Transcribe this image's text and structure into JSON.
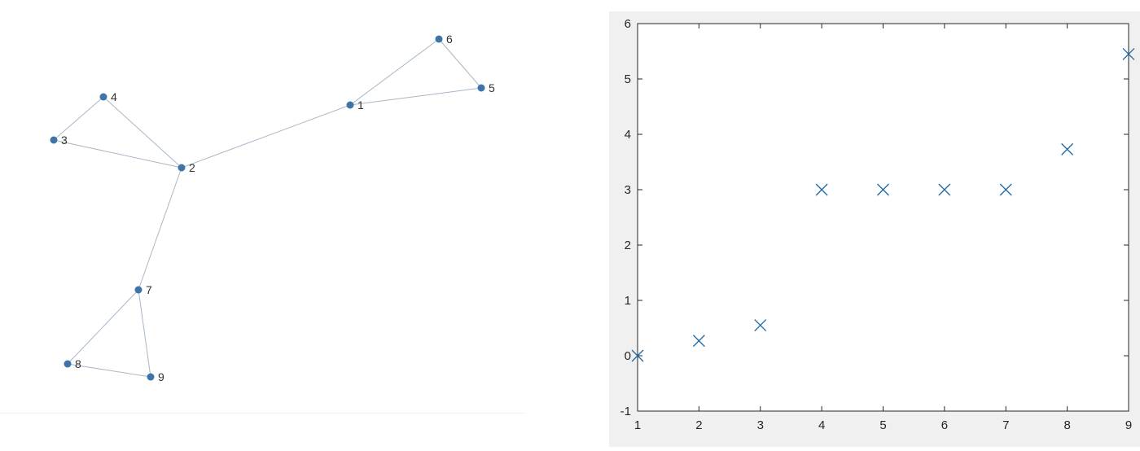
{
  "colors": {
    "node": "#3e74a8",
    "edge": "#a9b7c6",
    "marker": "#1f6aa5",
    "axis": "#262626",
    "figure_bg": "#f0f0f0"
  },
  "chart_data": [
    {
      "type": "graph",
      "nodes": [
        {
          "id": "1",
          "label": "1"
        },
        {
          "id": "2",
          "label": "2"
        },
        {
          "id": "3",
          "label": "3"
        },
        {
          "id": "4",
          "label": "4"
        },
        {
          "id": "5",
          "label": "5"
        },
        {
          "id": "6",
          "label": "6"
        },
        {
          "id": "7",
          "label": "7"
        },
        {
          "id": "8",
          "label": "8"
        },
        {
          "id": "9",
          "label": "9"
        }
      ],
      "edges": [
        [
          "1",
          "2"
        ],
        [
          "1",
          "5"
        ],
        [
          "1",
          "6"
        ],
        [
          "5",
          "6"
        ],
        [
          "2",
          "3"
        ],
        [
          "2",
          "4"
        ],
        [
          "3",
          "4"
        ],
        [
          "2",
          "7"
        ],
        [
          "7",
          "8"
        ],
        [
          "7",
          "9"
        ],
        [
          "8",
          "9"
        ]
      ]
    },
    {
      "type": "scatter",
      "marker": "x",
      "x": [
        1,
        2,
        3,
        4,
        5,
        6,
        7,
        8,
        9
      ],
      "y": [
        0,
        0.27,
        0.55,
        3,
        3,
        3,
        3,
        3.73,
        5.45
      ],
      "xlim": [
        1,
        9
      ],
      "ylim": [
        -1,
        6
      ],
      "xticks": [
        "1",
        "2",
        "3",
        "4",
        "5",
        "6",
        "7",
        "8",
        "9"
      ],
      "yticks": [
        "-1",
        "0",
        "1",
        "2",
        "3",
        "4",
        "5",
        "6"
      ],
      "grid": false,
      "title": "",
      "xlabel": "",
      "ylabel": ""
    }
  ]
}
